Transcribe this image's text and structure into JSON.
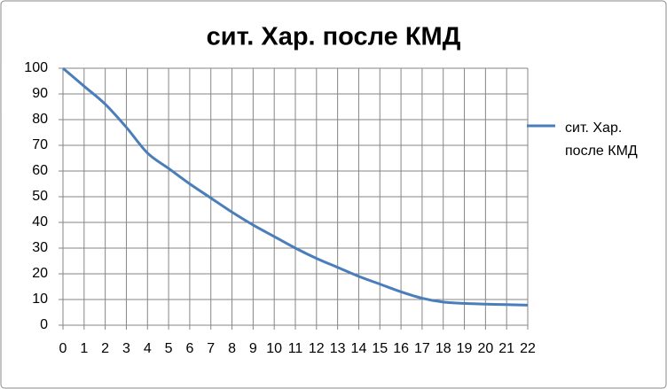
{
  "chart_data": {
    "type": "line",
    "title": "сит. Хар. после КМД",
    "x": [
      0,
      1,
      2,
      3,
      4,
      5,
      6,
      7,
      8,
      9,
      10,
      11,
      12,
      13,
      14,
      15,
      16,
      17,
      18,
      19,
      20,
      21,
      22
    ],
    "series": [
      {
        "name": "сит. Хар. после КМД",
        "color": "#4a7ebb",
        "values": [
          100,
          93,
          86,
          77,
          67,
          61,
          55,
          49.5,
          44,
          39,
          34.5,
          30,
          26,
          22.5,
          19,
          16,
          13,
          10.5,
          9,
          8.5,
          8.2,
          8,
          7.8
        ]
      }
    ],
    "xlim": [
      0,
      22
    ],
    "xticks": [
      0,
      1,
      2,
      3,
      4,
      5,
      6,
      7,
      8,
      9,
      10,
      11,
      12,
      13,
      14,
      15,
      16,
      17,
      18,
      19,
      20,
      21,
      22
    ],
    "ylim": [
      0,
      100
    ],
    "yticks": [
      0,
      10,
      20,
      30,
      40,
      50,
      60,
      70,
      80,
      90,
      100
    ],
    "grid": true,
    "legend": "right"
  }
}
